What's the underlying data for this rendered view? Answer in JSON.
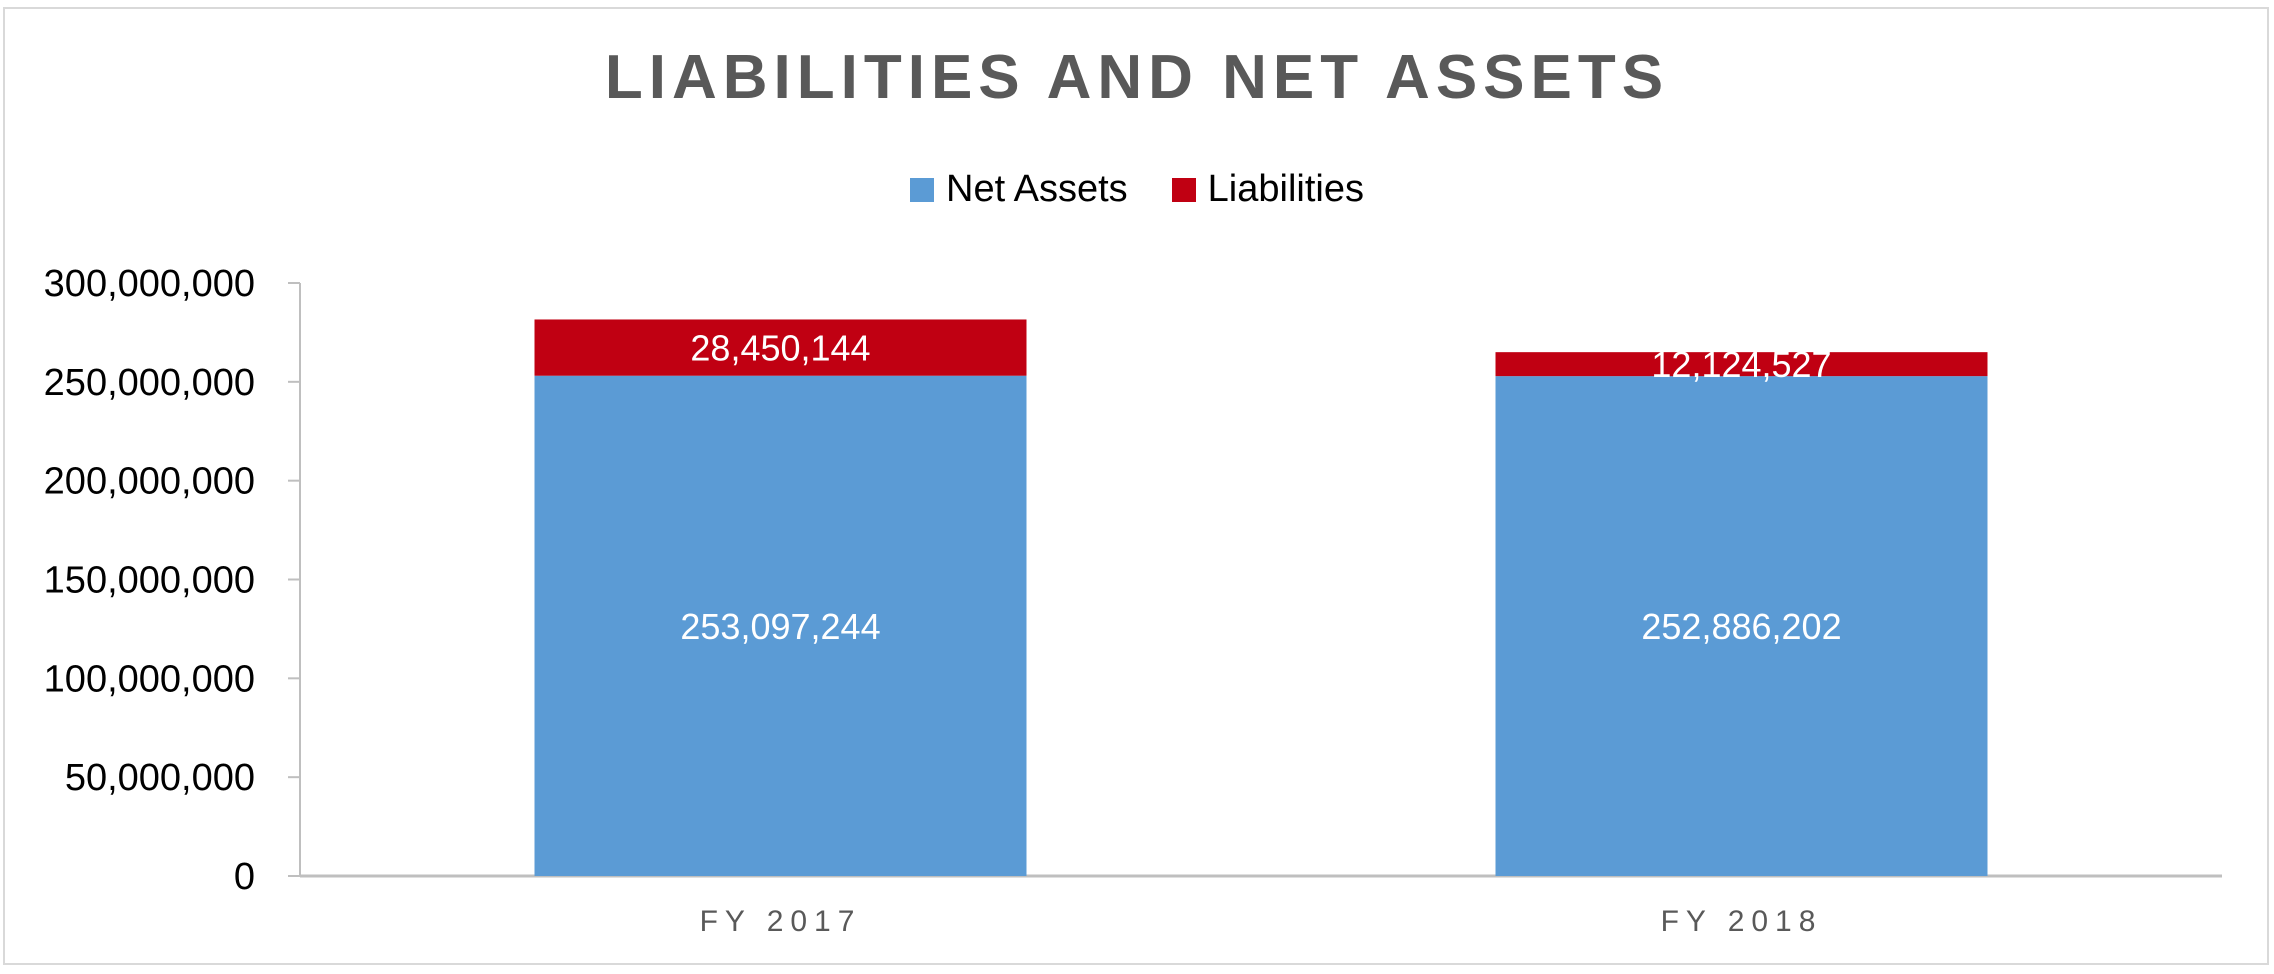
{
  "chart_data": {
    "type": "bar",
    "stacked": true,
    "title": "LIABILITIES AND NET ASSETS",
    "categories": [
      "FY 2017",
      "FY 2018"
    ],
    "series": [
      {
        "name": "Net Assets",
        "values": [
          253097244,
          252886202
        ],
        "labels": [
          "253,097,244",
          "252,886,202"
        ],
        "color": "#5b9bd5"
      },
      {
        "name": "Liabilities",
        "values": [
          28450144,
          12124527
        ],
        "labels": [
          "28,450,144",
          "12,124,527"
        ],
        "color": "#c00012"
      }
    ],
    "ylim": [
      0,
      300000000
    ],
    "yticks": [
      "0",
      "50,000,000",
      "100,000,000",
      "150,000,000",
      "200,000,000",
      "250,000,000",
      "300,000,000"
    ],
    "legend_position": "top",
    "grid": false
  }
}
